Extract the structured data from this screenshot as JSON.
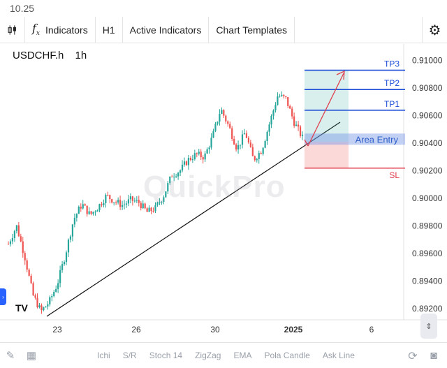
{
  "status": {
    "time": "10.25"
  },
  "toolbar": {
    "candle_icon": "candlestick-icon",
    "fx_glyph": "f",
    "fx_sub": "x",
    "indicators": "Indicators",
    "timeframe": "H1",
    "active_indicators": "Active Indicators",
    "chart_templates": "Chart Templates",
    "settings_icon": "gear-icon"
  },
  "chart": {
    "symbol": "USDCHF.h",
    "interval": "1h",
    "watermark": "QuickPro",
    "logo": "TV",
    "colors": {
      "up": "#26a69a",
      "down": "#ef5350",
      "target": "#1d4ed8",
      "stop": "#e0404e",
      "entry": "#2f5fc9"
    }
  },
  "chart_data": {
    "type": "candlestick",
    "x_ticks": [
      "23",
      "26",
      "30",
      "2025",
      "6"
    ],
    "y_ticks": [
      "0.91000",
      "0.90800",
      "0.90600",
      "0.90400",
      "0.90200",
      "0.90000",
      "0.89800",
      "0.89600",
      "0.89400",
      "0.89200"
    ],
    "ylim": [
      0.8912,
      0.9112
    ],
    "close_path": [
      0.8967,
      0.898,
      0.8958,
      0.893,
      0.8918,
      0.8925,
      0.8938,
      0.896,
      0.8985,
      0.8996,
      0.8988,
      0.8994,
      0.9002,
      0.8998,
      0.8995,
      0.8999,
      0.8997,
      0.899,
      0.8993,
      0.9002,
      0.9017,
      0.902,
      0.9028,
      0.9032,
      0.903,
      0.9045,
      0.9065,
      0.9052,
      0.9036,
      0.9048,
      0.9028,
      0.9035,
      0.9055,
      0.9075,
      0.9072,
      0.9055,
      0.9044
    ],
    "levels": [
      {
        "label": "TP3",
        "value": 0.9093
      },
      {
        "label": "TP2",
        "value": 0.9079
      },
      {
        "label": "TP1",
        "value": 0.9064
      },
      {
        "label": "Area Entry",
        "value": 0.9043
      },
      {
        "label": "SL",
        "value": 0.9022
      }
    ]
  },
  "bottombar": {
    "items": [
      "Ichi",
      "S/R",
      "Stoch 14",
      "ZigZag",
      "EMA",
      "Pola Candle",
      "Ask Line"
    ],
    "left_icons": [
      "pencil-icon",
      "calculator-icon"
    ],
    "right_icons": [
      "refresh-icon",
      "camera-icon"
    ]
  }
}
